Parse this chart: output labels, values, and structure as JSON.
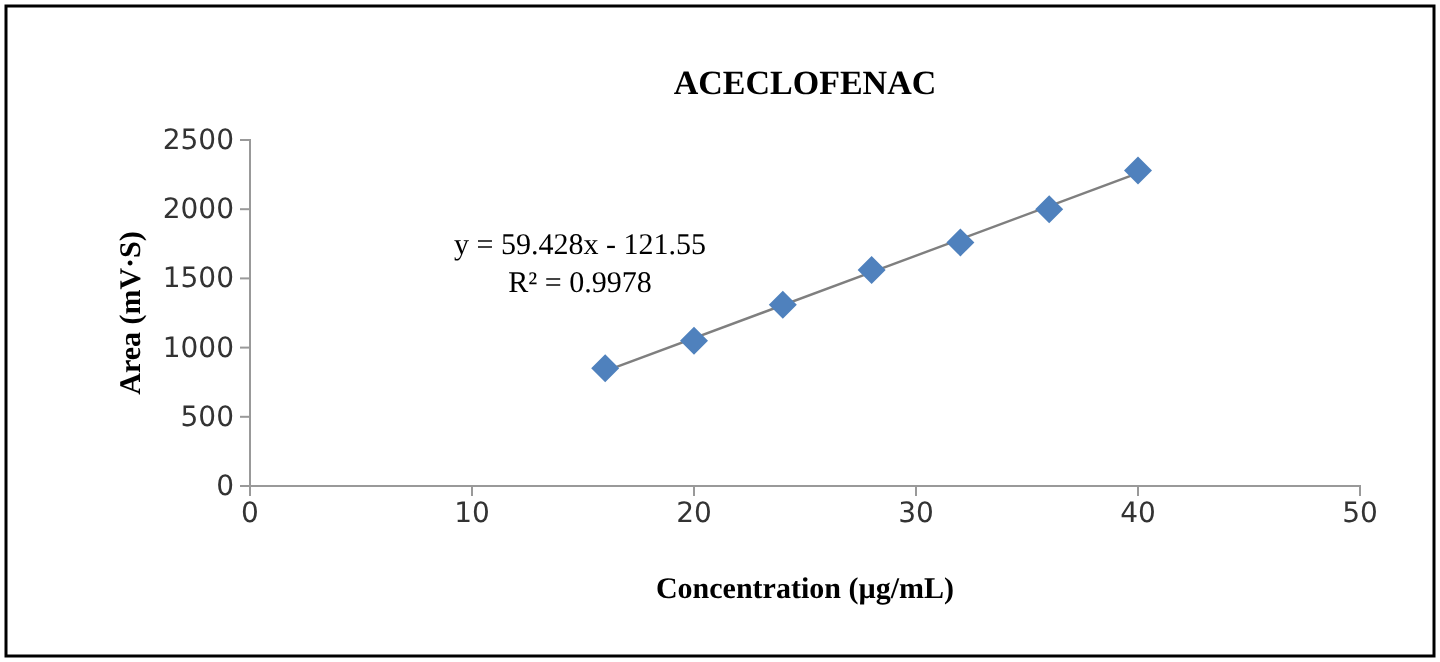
{
  "chart_data": {
    "type": "scatter",
    "title": "ACECLOFENAC",
    "xlabel": "Concentration (µg/mL)",
    "ylabel": "Area (mV·S)",
    "xlim": [
      0,
      50
    ],
    "xticks": [
      0,
      10,
      20,
      30,
      40,
      50
    ],
    "ylim": [
      0,
      2500
    ],
    "yticks": [
      0,
      500,
      1000,
      1500,
      2000,
      2500
    ],
    "grid": false,
    "annotations": [
      "y = 59.428x - 121.55",
      "R² = 0.9978"
    ],
    "series": [
      {
        "color": "#4f81bd",
        "marker": "diamond",
        "x": [
          16,
          20,
          24,
          28,
          32,
          36,
          40
        ],
        "values": [
          850,
          1050,
          1310,
          1560,
          1760,
          2000,
          2280
        ]
      },
      {
        "type": "line",
        "color": "#7f7f7f",
        "x": [
          16,
          40
        ],
        "values": [
          830,
          2260
        ],
        "line_style": "solid",
        "marker": "none"
      }
    ]
  }
}
